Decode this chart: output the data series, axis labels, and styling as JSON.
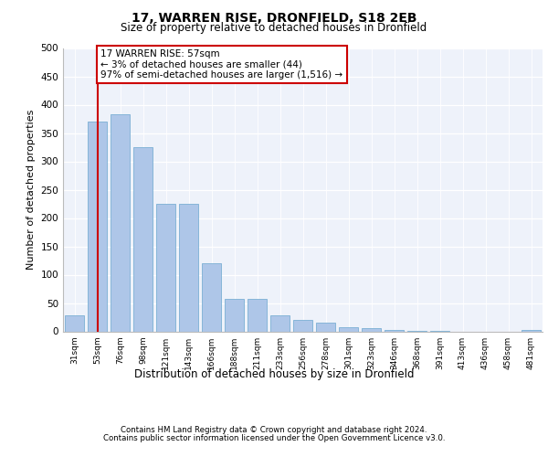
{
  "title1": "17, WARREN RISE, DRONFIELD, S18 2EB",
  "title2": "Size of property relative to detached houses in Dronfield",
  "xlabel": "Distribution of detached houses by size in Dronfield",
  "ylabel": "Number of detached properties",
  "footer1": "Contains HM Land Registry data © Crown copyright and database right 2024.",
  "footer2": "Contains public sector information licensed under the Open Government Licence v3.0.",
  "categories": [
    "31sqm",
    "53sqm",
    "76sqm",
    "98sqm",
    "121sqm",
    "143sqm",
    "166sqm",
    "188sqm",
    "211sqm",
    "233sqm",
    "256sqm",
    "278sqm",
    "301sqm",
    "323sqm",
    "346sqm",
    "368sqm",
    "391sqm",
    "413sqm",
    "436sqm",
    "458sqm",
    "481sqm"
  ],
  "values": [
    28,
    370,
    383,
    325,
    225,
    225,
    120,
    58,
    58,
    28,
    20,
    15,
    8,
    5,
    3,
    1,
    1,
    0,
    0,
    0,
    2
  ],
  "bar_color": "#aec6e8",
  "bar_edge_color": "#7bafd4",
  "annotation_text": "17 WARREN RISE: 57sqm\n← 3% of detached houses are smaller (44)\n97% of semi-detached houses are larger (1,516) →",
  "vline_x_index": 1,
  "vline_color": "#cc0000",
  "box_color": "#cc0000",
  "ylim": [
    0,
    500
  ],
  "yticks": [
    0,
    50,
    100,
    150,
    200,
    250,
    300,
    350,
    400,
    450,
    500
  ],
  "plot_bg_color": "#eef2fa"
}
